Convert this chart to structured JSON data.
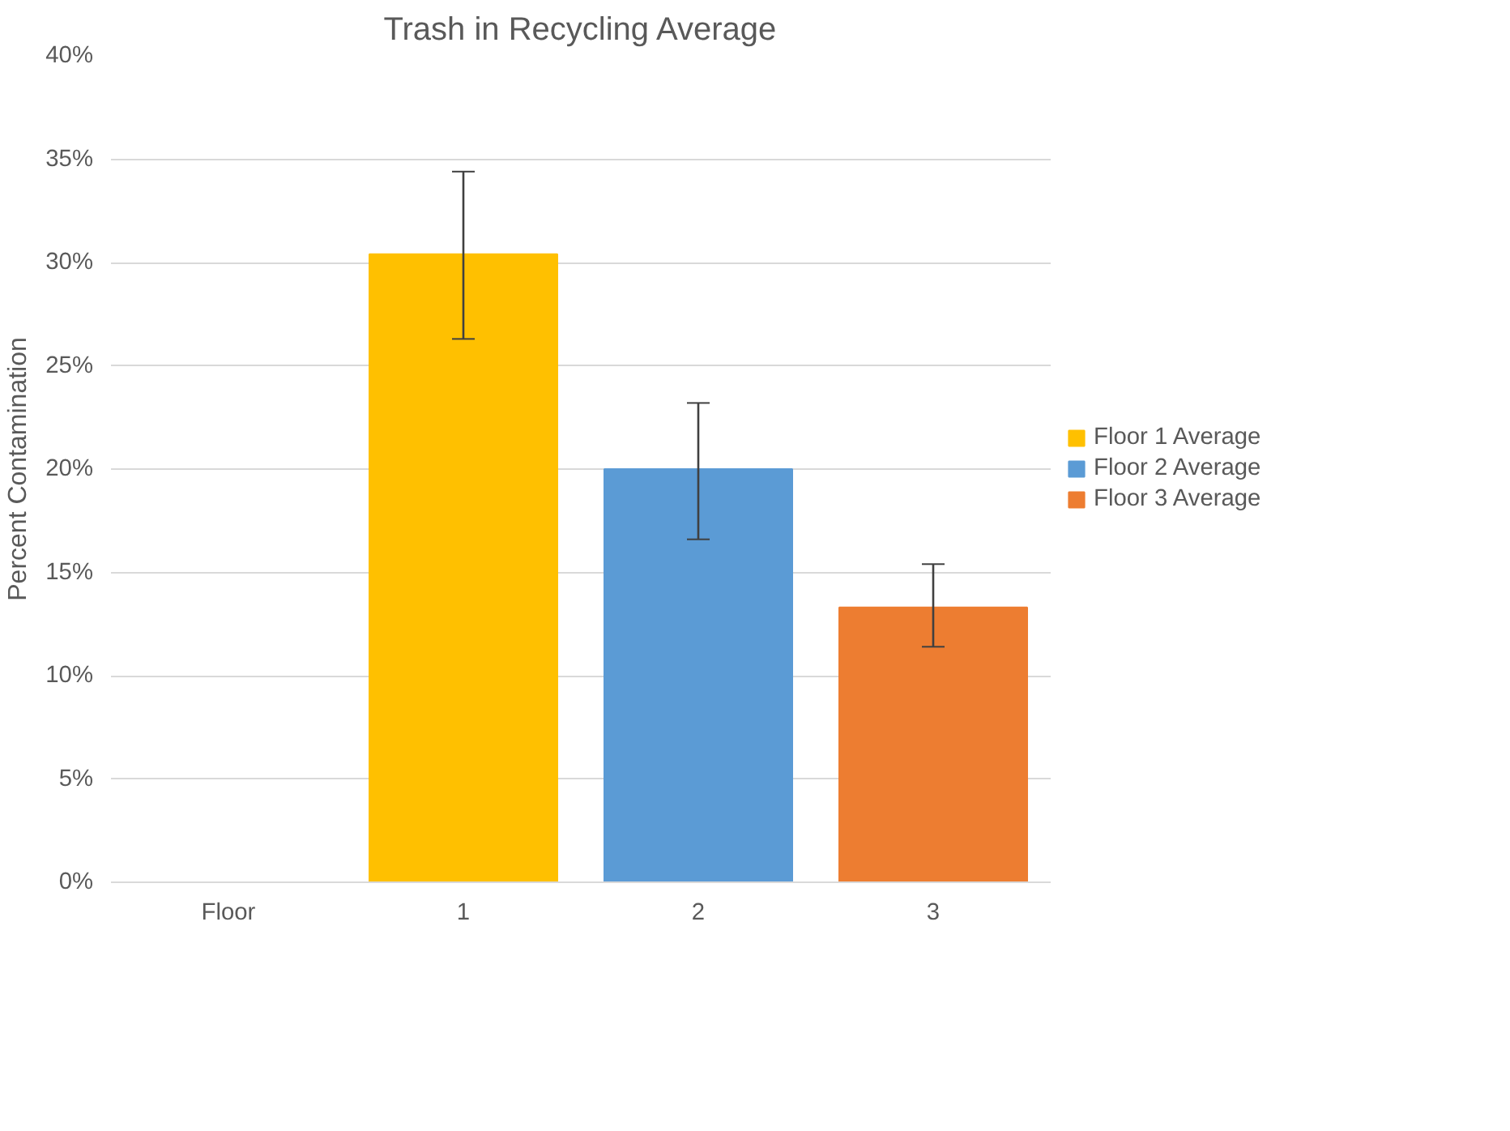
{
  "chart_data": {
    "type": "bar",
    "title": "Trash in Recycling Average",
    "ylabel": "Percent Contamination",
    "categories": [
      "Floor",
      "1",
      "2",
      "3"
    ],
    "series": [
      {
        "name": "Floor 1 Average",
        "color": "#ffc000",
        "values": [
          null,
          30.4,
          null,
          null
        ],
        "errors": [
          null,
          [
            26.3,
            34.4
          ],
          null,
          null
        ]
      },
      {
        "name": "Floor 2 Average",
        "color": "#5b9bd5",
        "values": [
          null,
          null,
          20.0,
          null
        ],
        "errors": [
          null,
          null,
          [
            16.6,
            23.2
          ],
          null
        ]
      },
      {
        "name": "Floor 3 Average",
        "color": "#ed7d31",
        "values": [
          null,
          null,
          null,
          13.3
        ],
        "errors": [
          null,
          null,
          null,
          [
            11.4,
            15.4
          ]
        ]
      }
    ],
    "ylim": [
      0,
      40
    ],
    "yticks": [
      {
        "value": 0,
        "label": "0%"
      },
      {
        "value": 5,
        "label": "5%"
      },
      {
        "value": 10,
        "label": "10%"
      },
      {
        "value": 15,
        "label": "15%"
      },
      {
        "value": 20,
        "label": "20%"
      },
      {
        "value": 25,
        "label": "25%"
      },
      {
        "value": 30,
        "label": "30%"
      },
      {
        "value": 35,
        "label": "35%"
      },
      {
        "value": 40,
        "label": "40%"
      }
    ],
    "grid": "y",
    "legend": "right"
  }
}
